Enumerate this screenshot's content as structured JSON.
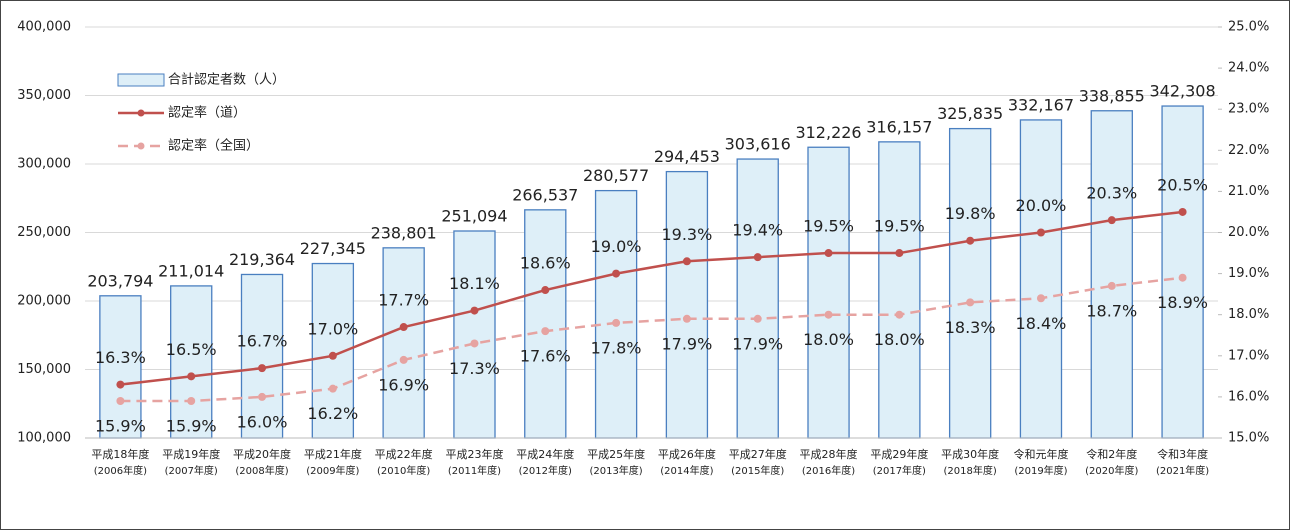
{
  "chart_data": {
    "type": "bar",
    "categories": [
      [
        "平成18年度",
        "(2006年度)"
      ],
      [
        "平成19年度",
        "(2007年度)"
      ],
      [
        "平成20年度",
        "(2008年度)"
      ],
      [
        "平成21年度",
        "(2009年度)"
      ],
      [
        "平成22年度",
        "(2010年度)"
      ],
      [
        "平成23年度",
        "(2011年度)"
      ],
      [
        "平成24年度",
        "(2012年度)"
      ],
      [
        "平成25年度",
        "(2013年度)"
      ],
      [
        "平成26年度",
        "(2014年度)"
      ],
      [
        "平成27年度",
        "(2015年度)"
      ],
      [
        "平成28年度",
        "(2016年度)"
      ],
      [
        "平成29年度",
        "(2017年度)"
      ],
      [
        "平成30年度",
        "(2018年度)"
      ],
      [
        "令和元年度",
        "(2019年度)"
      ],
      [
        "令和2年度",
        "(2020年度)"
      ],
      [
        "令和3年度",
        "(2021年度)"
      ]
    ],
    "series": [
      {
        "name": "合計認定者数（人）",
        "type": "bar",
        "color": "#deeff8",
        "edge": "#4a7fc0",
        "values": [
          203794,
          211014,
          219364,
          227345,
          238801,
          251094,
          266537,
          280577,
          294453,
          303616,
          312226,
          316157,
          325835,
          332167,
          338855,
          342308
        ],
        "value_labels": [
          "203,794",
          "211,014",
          "219,364",
          "227,345",
          "238,801",
          "251,094",
          "266,537",
          "280,577",
          "294,453",
          "303,616",
          "312,226",
          "316,157",
          "325,835",
          "332,167",
          "338,855",
          "342,308"
        ]
      },
      {
        "name": "認定率（道）",
        "type": "line",
        "axis": "y2",
        "color": "#c0504d",
        "dashed": false,
        "values": [
          16.3,
          16.5,
          16.7,
          17.0,
          17.7,
          18.1,
          18.6,
          19.0,
          19.3,
          19.4,
          19.5,
          19.5,
          19.8,
          20.0,
          20.3,
          20.5
        ],
        "value_labels": [
          "16.3%",
          "16.5%",
          "16.7%",
          "17.0%",
          "17.7%",
          "18.1%",
          "18.6%",
          "19.0%",
          "19.3%",
          "19.4%",
          "19.5%",
          "19.5%",
          "19.8%",
          "20.0%",
          "20.3%",
          "20.5%"
        ]
      },
      {
        "name": "認定率（全国）",
        "type": "line",
        "axis": "y2",
        "color": "#e6a3a1",
        "dashed": true,
        "values": [
          15.9,
          15.9,
          16.0,
          16.2,
          16.9,
          17.3,
          17.6,
          17.8,
          17.9,
          17.9,
          18.0,
          18.0,
          18.3,
          18.4,
          18.7,
          18.9
        ],
        "value_labels": [
          "15.9%",
          "15.9%",
          "16.0%",
          "16.2%",
          "16.9%",
          "17.3%",
          "17.6%",
          "17.8%",
          "17.9%",
          "17.9%",
          "18.0%",
          "18.0%",
          "18.3%",
          "18.4%",
          "18.7%",
          "18.9%"
        ]
      }
    ],
    "ylim": [
      100000,
      400000
    ],
    "yticks": [
      {
        "value": 100000,
        "label": "100,000"
      },
      {
        "value": 150000,
        "label": "150,000"
      },
      {
        "value": 200000,
        "label": "200,000"
      },
      {
        "value": 250000,
        "label": "250,000"
      },
      {
        "value": 300000,
        "label": "300,000"
      },
      {
        "value": 350000,
        "label": "350,000"
      },
      {
        "value": 400000,
        "label": "400,000"
      }
    ],
    "y2lim": [
      15.0,
      25.0
    ],
    "y2ticks": [
      {
        "value": 15.0,
        "label": "15.0%"
      },
      {
        "value": 16.0,
        "label": "16.0%"
      },
      {
        "value": 17.0,
        "label": "17.0%"
      },
      {
        "value": 18.0,
        "label": "18.0%"
      },
      {
        "value": 19.0,
        "label": "19.0%"
      },
      {
        "value": 20.0,
        "label": "20.0%"
      },
      {
        "value": 21.0,
        "label": "21.0%"
      },
      {
        "value": 22.0,
        "label": "22.0%"
      },
      {
        "value": 23.0,
        "label": "23.0%"
      },
      {
        "value": 24.0,
        "label": "24.0%"
      },
      {
        "value": 25.0,
        "label": "25.0%"
      }
    ],
    "grid": true,
    "legend": "top-left"
  }
}
